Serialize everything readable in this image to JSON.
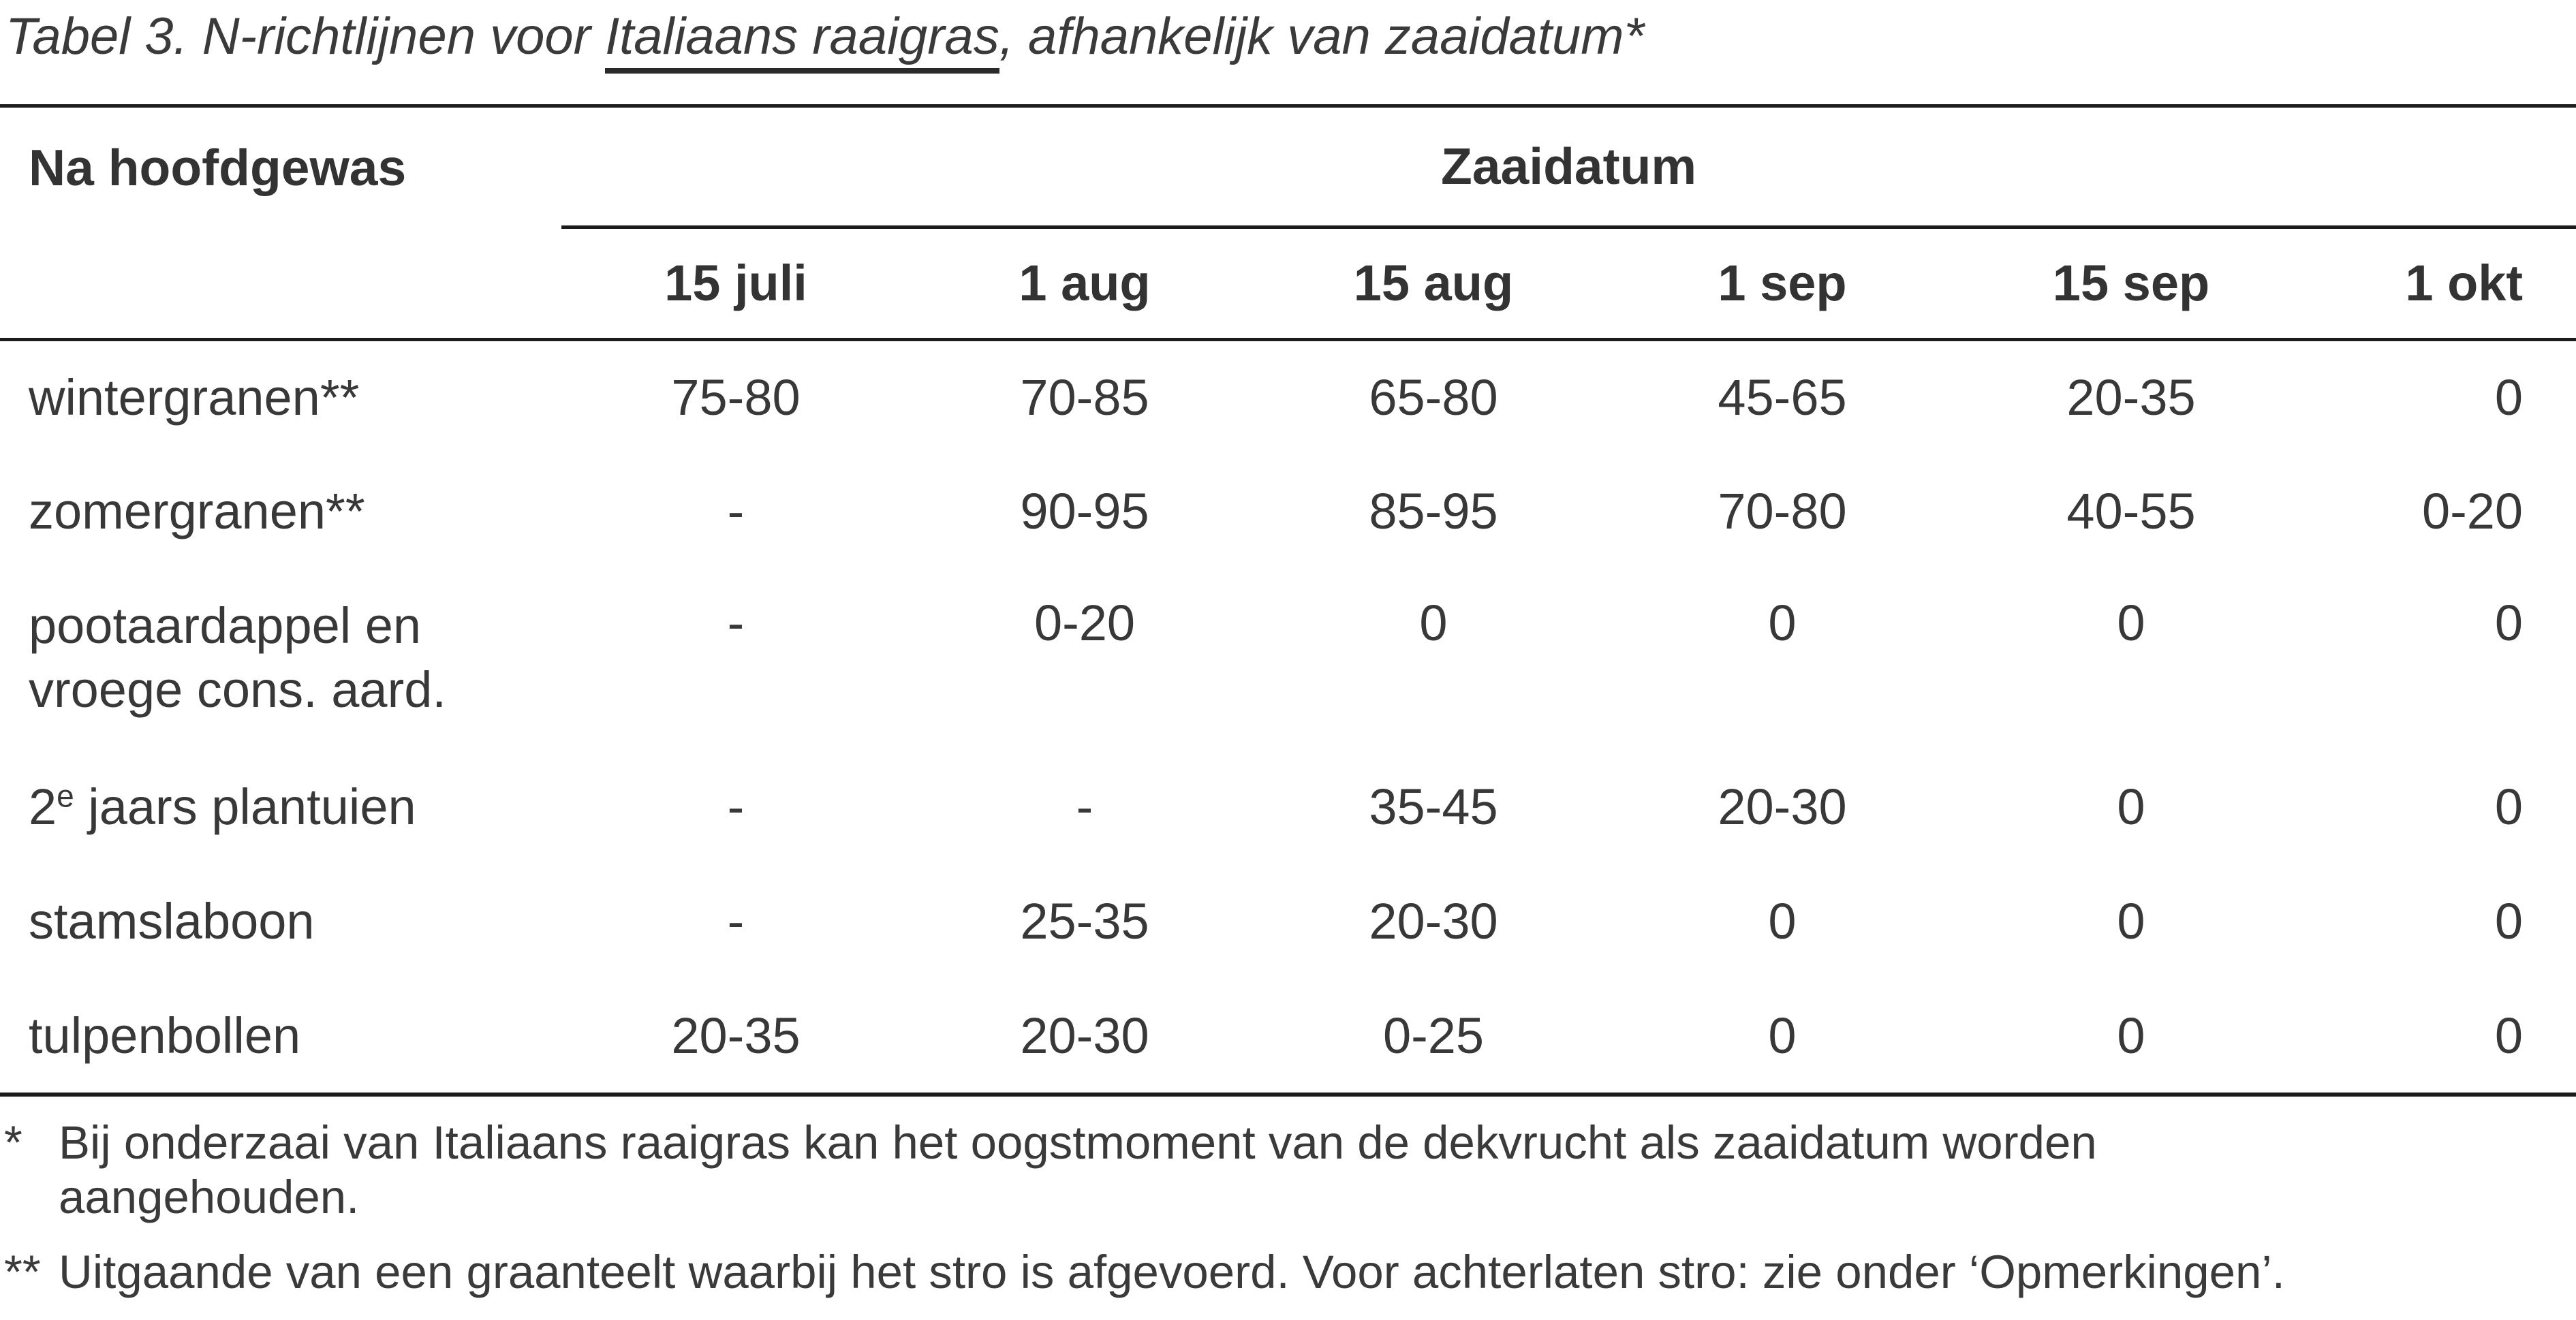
{
  "title": {
    "part1": "Tabel 3. N-richtlijnen voor ",
    "underlined": "Italiaans raaigras",
    "part2": ", afhankelijk van zaaidatum*"
  },
  "table": {
    "col1_header": "Na hoofdgewas",
    "group_header": "Zaaidatum",
    "columns": [
      "15 juli",
      "1 aug",
      "15 aug",
      "1 sep",
      "15 sep",
      "1 okt"
    ],
    "rows": [
      {
        "label": "wintergranen**",
        "values": [
          "75-80",
          "70-85",
          "65-80",
          "45-65",
          "20-35",
          "0"
        ]
      },
      {
        "label": "zomergranen**",
        "values": [
          "-",
          "90-95",
          "85-95",
          "70-80",
          "40-55",
          "0-20"
        ]
      },
      {
        "label_line1": "pootaardappel en",
        "label_line2": "vroege cons. aard.",
        "values": [
          "-",
          "0-20",
          "0",
          "0",
          "0",
          "0"
        ]
      },
      {
        "label_pre": "2",
        "label_sup": "e",
        "label_post": " jaars plantuien",
        "values": [
          "-",
          "-",
          "35-45",
          "20-30",
          "0",
          "0"
        ]
      },
      {
        "label": "stamslaboon",
        "values": [
          "-",
          "25-35",
          "20-30",
          "0",
          "0",
          "0"
        ]
      },
      {
        "label": "tulpenbollen",
        "values": [
          "20-35",
          "20-30",
          "0-25",
          "0",
          "0",
          "0"
        ]
      }
    ]
  },
  "footnotes": [
    {
      "marker": "*",
      "line1": "Bij onderzaai van Italiaans raaigras kan het oogstmoment van de dekvrucht als zaaidatum worden",
      "line2": "aangehouden."
    },
    {
      "marker": "**",
      "line1": "Uitgaande van een graanteelt waarbij het stro is afgevoerd. Voor achterlaten stro: zie onder ‘Opmerkingen’."
    }
  ],
  "colors": {
    "text": "#383838",
    "rule": "#1c1c1c",
    "background": "#ffffff"
  }
}
